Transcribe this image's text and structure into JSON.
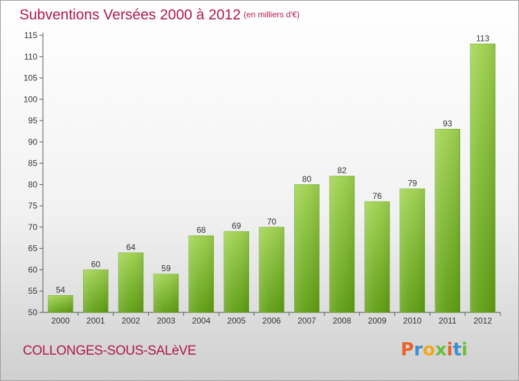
{
  "header": {
    "title": "Subventions Versées 2000 à 2012",
    "subtitle": "(en milliers d'€)"
  },
  "footer": {
    "commune": "COLLONGES-SOUS-SALèVE",
    "logo_text": "Proxiti",
    "logo_colors": [
      "#e8632a",
      "#3a8fd0",
      "#f0a81c",
      "#6abf3a",
      "#e8632a",
      "#3a8fd0",
      "#6abf3a"
    ]
  },
  "chart_data": {
    "type": "bar",
    "categories": [
      "2000",
      "2001",
      "2002",
      "2003",
      "2004",
      "2005",
      "2006",
      "2007",
      "2008",
      "2009",
      "2010",
      "2011",
      "2012"
    ],
    "values": [
      54,
      60,
      64,
      59,
      68,
      69,
      70,
      80,
      82,
      76,
      79,
      93,
      113
    ],
    "title": "Subventions Versées 2000 à 2012",
    "subtitle": "(en milliers d'€)",
    "xlabel": "",
    "ylabel": "",
    "ylim": [
      50,
      115
    ],
    "yticks": [
      50,
      55,
      60,
      65,
      70,
      75,
      80,
      85,
      90,
      95,
      100,
      105,
      110,
      115
    ],
    "grid": false,
    "bar_color_top": "#9fd24f",
    "bar_color_bottom": "#5e9e12"
  }
}
